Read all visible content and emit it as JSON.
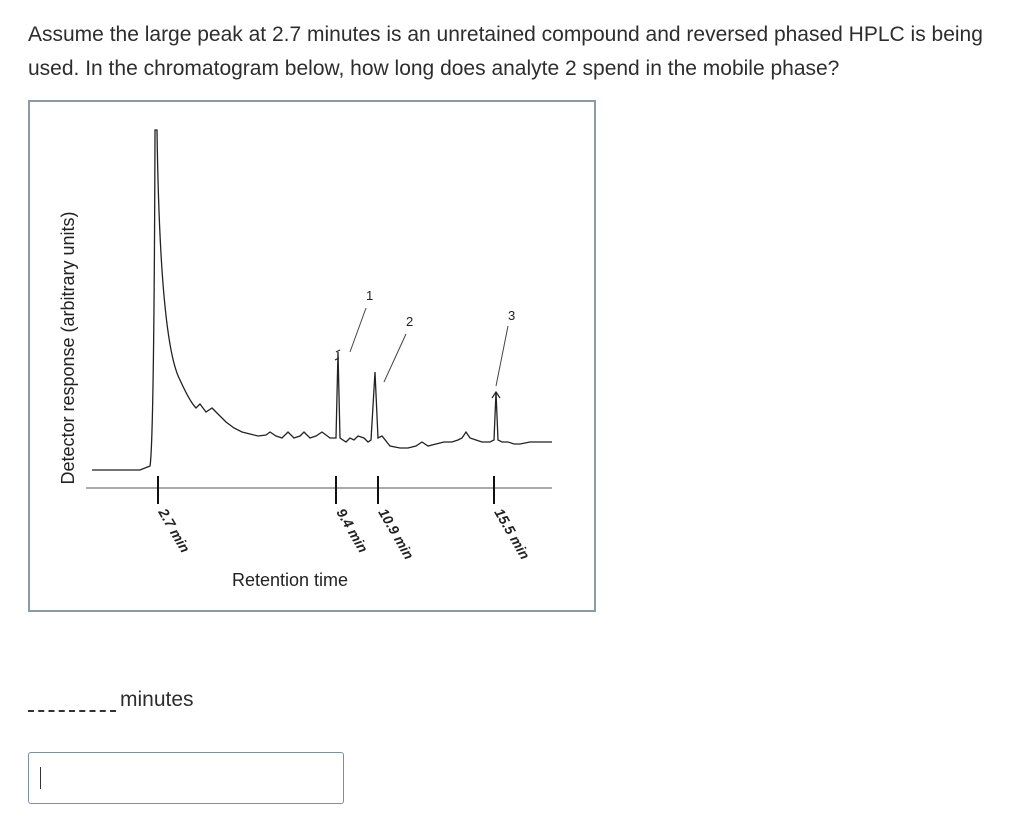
{
  "question": {
    "text": "Assume the large peak at 2.7 minutes is an unretained compound and reversed phased HPLC is being used. In the chromatogram below, how long does analyte 2 spend in the mobile phase?"
  },
  "chart_data": {
    "type": "line",
    "xlabel": "Retention time",
    "ylabel": "Detector response (arbitrary units)",
    "ticks": [
      {
        "value": 2.7,
        "label": "2.7 min"
      },
      {
        "value": 9.4,
        "label": "9.4 min"
      },
      {
        "value": 10.9,
        "label": "10.9 min"
      },
      {
        "value": 15.5,
        "label": "15.5 min"
      }
    ],
    "peaks": [
      {
        "label": "1",
        "x": 9.4
      },
      {
        "label": "2",
        "x": 10.9
      },
      {
        "label": "3",
        "x": 15.5
      }
    ]
  },
  "answer": {
    "unit_label": "minutes",
    "value": ""
  },
  "colors": {
    "frame": "#8c9aa6",
    "input_border": "#7a8f9f",
    "ink": "#222222"
  }
}
